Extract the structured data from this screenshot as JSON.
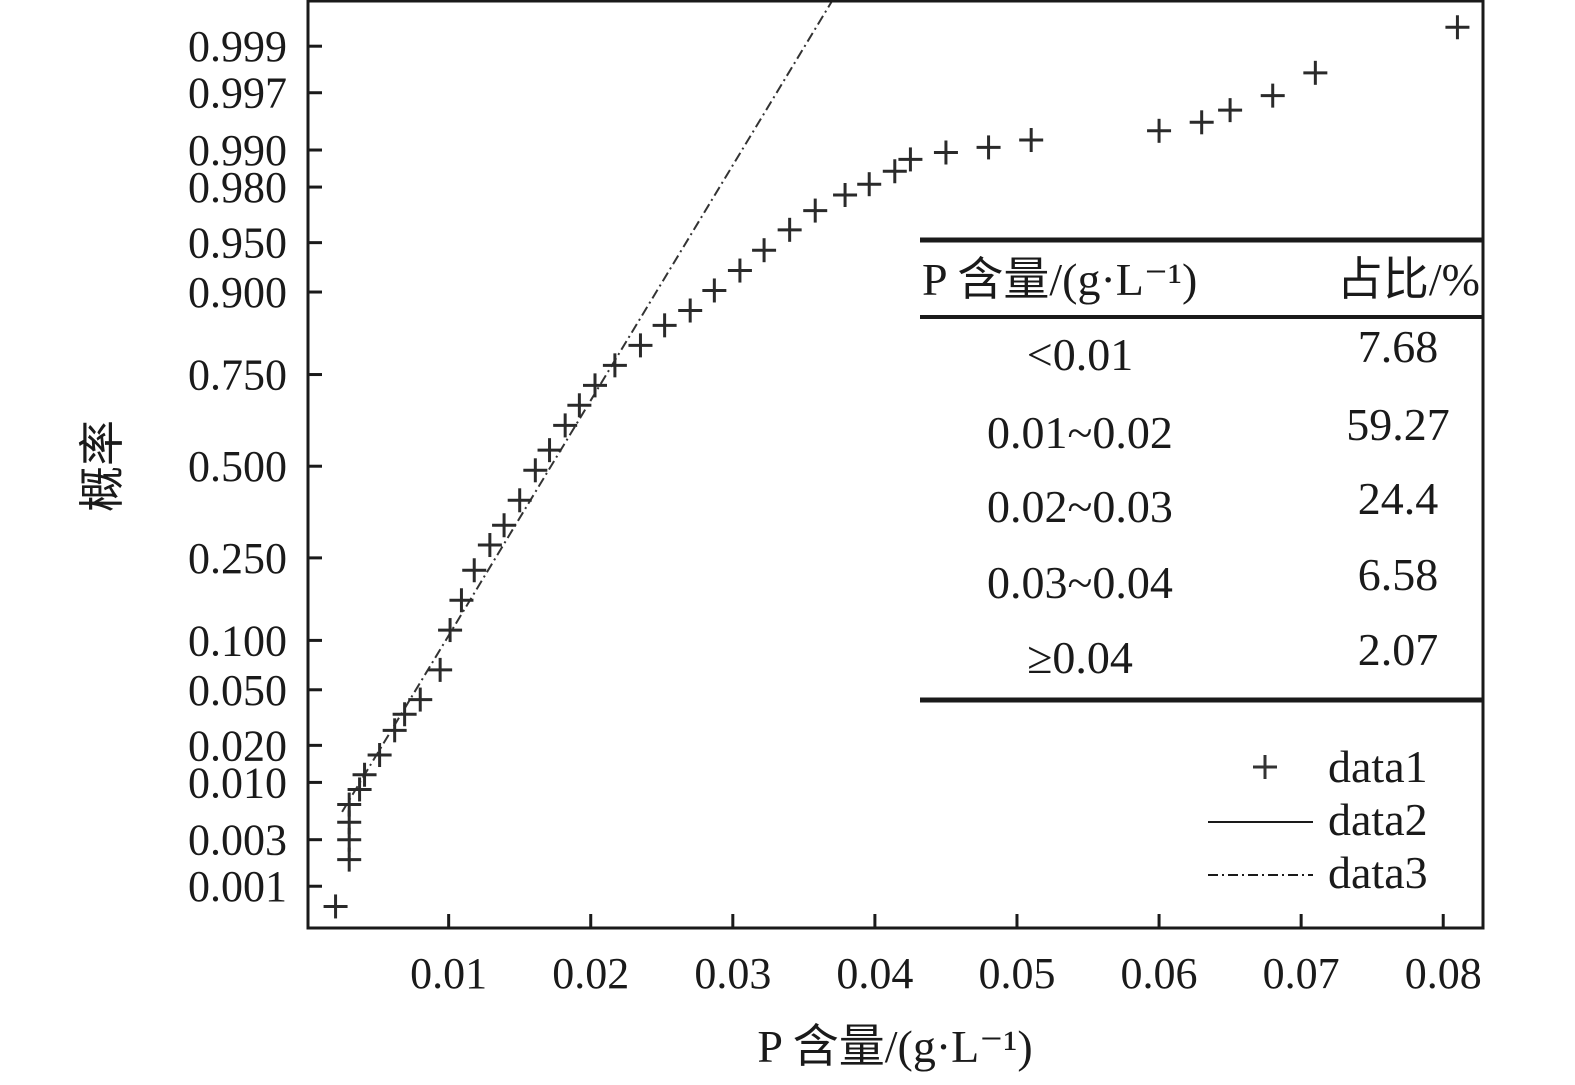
{
  "chart_data": {
    "type": "scatter",
    "subtype": "normal-probability-plot",
    "title": "",
    "xlabel": "P 含量/(g·L⁻¹)",
    "ylabel": "概率",
    "xlim": [
      0.0001,
      0.0828
    ],
    "ylim": [
      0.00034,
      0.99969
    ],
    "x_ticks": [
      0.01,
      0.02,
      0.03,
      0.04,
      0.05,
      0.06,
      0.07,
      0.08
    ],
    "x_tick_labels": [
      "0.01",
      "0.02",
      "0.03",
      "0.04",
      "0.05",
      "0.06",
      "0.07",
      "0.08"
    ],
    "y_ticks": [
      0.001,
      0.003,
      0.01,
      0.02,
      0.05,
      0.1,
      0.25,
      0.5,
      0.75,
      0.9,
      0.95,
      0.98,
      0.99,
      0.997,
      0.999
    ],
    "y_tick_labels": [
      "0.001",
      "0.003",
      "0.010",
      "0.020",
      "0.050",
      "0.100",
      "0.250",
      "0.500",
      "0.750",
      "0.900",
      "0.950",
      "0.980",
      "0.990",
      "0.997",
      "0.999"
    ],
    "grid": false,
    "series": [
      {
        "name": "data1",
        "marker": "+",
        "points": [
          [
            0.00204,
            0.0006
          ],
          [
            0.003,
            0.0019
          ],
          [
            0.003,
            0.003
          ],
          [
            0.003,
            0.0044
          ],
          [
            0.003,
            0.0064
          ],
          [
            0.00373,
            0.0087
          ],
          [
            0.00408,
            0.0116
          ],
          [
            0.00514,
            0.0168
          ],
          [
            0.0062,
            0.026
          ],
          [
            0.0069,
            0.034
          ],
          [
            0.008,
            0.043
          ],
          [
            0.0094,
            0.067
          ],
          [
            0.0101,
            0.114
          ],
          [
            0.0109,
            0.162
          ],
          [
            0.0118,
            0.222
          ],
          [
            0.0129,
            0.281
          ],
          [
            0.0139,
            0.332
          ],
          [
            0.015,
            0.401
          ],
          [
            0.0161,
            0.488
          ],
          [
            0.0171,
            0.547
          ],
          [
            0.0182,
            0.618
          ],
          [
            0.0192,
            0.673
          ],
          [
            0.0203,
            0.724
          ],
          [
            0.0217,
            0.771
          ],
          [
            0.0235,
            0.813
          ],
          [
            0.0252,
            0.85
          ],
          [
            0.027,
            0.874
          ],
          [
            0.0287,
            0.902
          ],
          [
            0.0305,
            0.925
          ],
          [
            0.0322,
            0.944
          ],
          [
            0.034,
            0.959
          ],
          [
            0.0358,
            0.97
          ],
          [
            0.0379,
            0.977
          ],
          [
            0.0396,
            0.981
          ],
          [
            0.0414,
            0.985
          ],
          [
            0.0425,
            0.988
          ],
          [
            0.045,
            0.9895
          ],
          [
            0.048,
            0.9905
          ],
          [
            0.051,
            0.9918
          ],
          [
            0.06,
            0.9932
          ],
          [
            0.063,
            0.9943
          ],
          [
            0.065,
            0.9956
          ],
          [
            0.068,
            0.9968
          ],
          [
            0.071,
            0.9981
          ],
          [
            0.081,
            0.99938
          ]
        ]
      },
      {
        "name": "data2",
        "type": "line"
      },
      {
        "name": "data3",
        "type": "line",
        "style": "dash-dot",
        "normal_fit": {
          "mean": 0.0172,
          "sd": 0.00578
        },
        "x_range": [
          0.0025,
          0.04
        ]
      }
    ],
    "legend": {
      "entries": [
        "data1",
        "data2",
        "data3"
      ],
      "placement": "bottom-right"
    },
    "inset_table": {
      "headers": [
        "P 含量/(g·L⁻¹)",
        "占比/%"
      ],
      "rows": [
        [
          "<0.01",
          "7.68"
        ],
        [
          "0.01~0.02",
          "59.27"
        ],
        [
          "0.02~0.03",
          "24.4"
        ],
        [
          "0.03~0.04",
          "6.58"
        ],
        [
          "≥0.04",
          "2.07"
        ]
      ]
    }
  }
}
